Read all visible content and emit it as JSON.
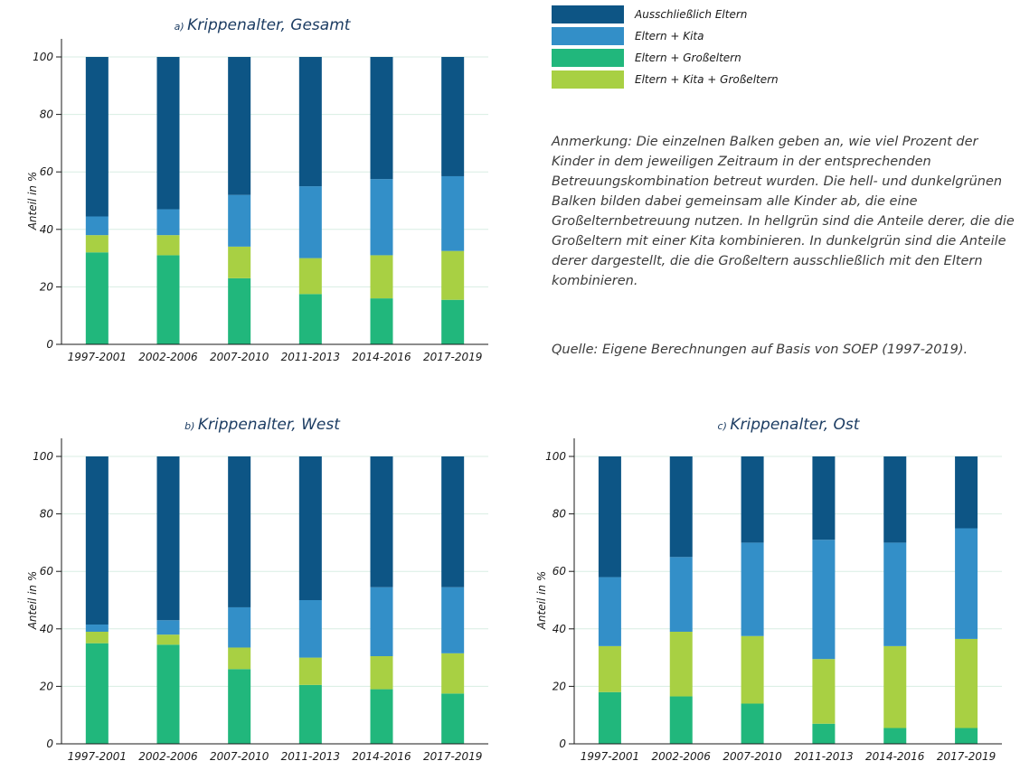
{
  "colors": {
    "Ausschließlich Eltern": "#0d5585",
    "Eltern + Kita": "#338fc8",
    "Eltern + Großeltern": "#21b77c",
    "Eltern + Kita + Großeltern": "#a8d043",
    "grid": "#d8eee3",
    "title": "#1d3d63"
  },
  "legend": {
    "items": [
      {
        "label": "Ausschließlich Eltern",
        "color": "#0d5585"
      },
      {
        "label": "Eltern + Kita",
        "color": "#338fc8"
      },
      {
        "label": "Eltern + Großeltern",
        "color": "#21b77c"
      },
      {
        "label": "Eltern + Kita + Großeltern",
        "color": "#a8d043"
      }
    ]
  },
  "note": "Anmerkung: Die einzelnen Balken geben an, wie viel Prozent der Kinder in dem jeweiligen Zeitraum in der entsprechenden Betreuungskombination betreut wurden. Die hell- und dunkelgrünen Balken bilden dabei gemeinsam alle Kinder ab, die eine Großelternbetreuung nutzen. In hellgrün sind die Anteile derer, die die Großeltern mit einer Kita kombinieren. In dunkelgrün sind die Anteile derer dargestellt, die die Großeltern ausschließlich mit den Eltern kombinieren.",
  "source": "Quelle: Eigene Berechnungen auf Basis von SOEP (1997-2019).",
  "chart_data": [
    {
      "type": "bar",
      "stacked": true,
      "letter": "a)",
      "title": "Krippenalter, Gesamt",
      "ylabel": "Anteil in %",
      "ylim": [
        0,
        100
      ],
      "yticks": [
        0,
        20,
        40,
        60,
        80,
        100
      ],
      "grid": true,
      "categories": [
        "1997-2001",
        "2002-2006",
        "2007-2010",
        "2011-2013",
        "2014-2016",
        "2017-2019"
      ],
      "series": [
        {
          "name": "Eltern + Großeltern",
          "values": [
            32,
            31,
            23,
            17.5,
            16,
            15.5
          ]
        },
        {
          "name": "Eltern + Kita + Großeltern",
          "values": [
            6,
            7,
            11,
            12.5,
            15,
            17
          ]
        },
        {
          "name": "Eltern + Kita",
          "values": [
            6.5,
            9,
            18,
            25,
            26.5,
            26
          ]
        },
        {
          "name": "Ausschließlich Eltern",
          "values": [
            55.5,
            53,
            48,
            45,
            42.5,
            41.5
          ]
        }
      ]
    },
    {
      "type": "bar",
      "stacked": true,
      "letter": "b)",
      "title": "Krippenalter, West",
      "ylabel": "Anteil in %",
      "ylim": [
        0,
        100
      ],
      "yticks": [
        0,
        20,
        40,
        60,
        80,
        100
      ],
      "grid": true,
      "categories": [
        "1997-2001",
        "2002-2006",
        "2007-2010",
        "2011-2013",
        "2014-2016",
        "2017-2019"
      ],
      "series": [
        {
          "name": "Eltern + Großeltern",
          "values": [
            35,
            34.5,
            26,
            20.5,
            19,
            17.5
          ]
        },
        {
          "name": "Eltern + Kita + Großeltern",
          "values": [
            4,
            3.5,
            7.5,
            9.5,
            11.5,
            14
          ]
        },
        {
          "name": "Eltern + Kita",
          "values": [
            2.5,
            5,
            14,
            20,
            24,
            23
          ]
        },
        {
          "name": "Ausschließlich Eltern",
          "values": [
            58.5,
            57,
            52.5,
            50,
            45.5,
            45.5
          ]
        }
      ]
    },
    {
      "type": "bar",
      "stacked": true,
      "letter": "c)",
      "title": "Krippenalter, Ost",
      "ylabel": "Anteil in %",
      "ylim": [
        0,
        100
      ],
      "yticks": [
        0,
        20,
        40,
        60,
        80,
        100
      ],
      "grid": true,
      "categories": [
        "1997-2001",
        "2002-2006",
        "2007-2010",
        "2011-2013",
        "2014-2016",
        "2017-2019"
      ],
      "series": [
        {
          "name": "Eltern + Großeltern",
          "values": [
            18,
            16.5,
            14,
            7,
            5.5,
            5.5
          ]
        },
        {
          "name": "Eltern + Kita + Großeltern",
          "values": [
            16,
            22.5,
            23.5,
            22.5,
            28.5,
            31
          ]
        },
        {
          "name": "Eltern + Kita",
          "values": [
            24,
            26,
            32.5,
            41.5,
            36,
            38.5
          ]
        },
        {
          "name": "Ausschließlich Eltern",
          "values": [
            42,
            35,
            30,
            29,
            30,
            25
          ]
        }
      ]
    }
  ]
}
